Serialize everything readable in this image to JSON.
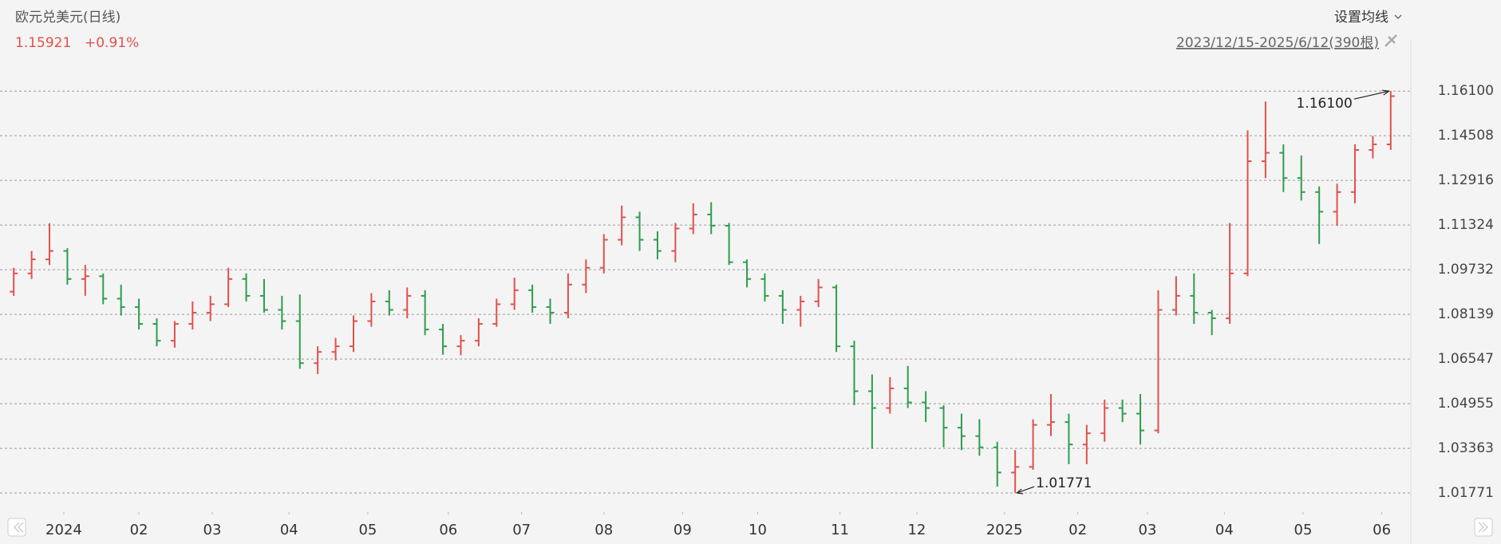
{
  "chart_data": {
    "type": "ohlc",
    "title": "欧元兑美元(日线)",
    "price": "1.15921",
    "change": "+0.91%",
    "ma_button": "设置均线",
    "range_text": "2023/12/15-2025/6/12(390根)",
    "max_label": "1.16100",
    "min_label": "1.01771",
    "up_color": "#e2504c",
    "down_color": "#2f9d4e",
    "grid": true,
    "xlim": [
      -0.5,
      77.5
    ],
    "xticks": [
      {
        "value": 2.8,
        "label": "2024"
      },
      {
        "value": 7.0,
        "label": "02"
      },
      {
        "value": 11.1,
        "label": "03"
      },
      {
        "value": 15.4,
        "label": "04"
      },
      {
        "value": 19.8,
        "label": "05"
      },
      {
        "value": 24.3,
        "label": "06"
      },
      {
        "value": 28.4,
        "label": "07"
      },
      {
        "value": 33.0,
        "label": "08"
      },
      {
        "value": 37.4,
        "label": "09"
      },
      {
        "value": 41.6,
        "label": "10"
      },
      {
        "value": 46.2,
        "label": "11"
      },
      {
        "value": 50.5,
        "label": "12"
      },
      {
        "value": 55.4,
        "label": "2025"
      },
      {
        "value": 59.5,
        "label": "02"
      },
      {
        "value": 63.4,
        "label": "03"
      },
      {
        "value": 67.7,
        "label": "04"
      },
      {
        "value": 72.1,
        "label": "05"
      },
      {
        "value": 76.5,
        "label": "06"
      }
    ],
    "ylim": [
      1.0109,
      1.173
    ],
    "yticks": [
      {
        "value": 1.161,
        "label": "1.16100"
      },
      1.14508,
      1.12916,
      1.11324,
      1.09732,
      1.08139,
      1.06547,
      1.04955,
      1.03363,
      1.01771
    ],
    "open": [
      1.0895,
      1.096,
      1.101,
      1.104,
      1.094,
      1.095,
      1.087,
      1.084,
      1.078,
      1.072,
      1.078,
      1.082,
      1.085,
      1.094,
      1.088,
      1.083,
      1.079,
      1.064,
      1.068,
      1.07,
      1.079,
      1.086,
      1.083,
      1.088,
      1.076,
      1.07,
      1.072,
      1.078,
      1.085,
      1.09,
      1.084,
      1.082,
      1.092,
      1.098,
      1.108,
      1.116,
      1.108,
      1.104,
      1.112,
      1.117,
      1.113,
      1.1,
      1.094,
      1.088,
      1.083,
      1.086,
      1.091,
      1.07,
      1.054,
      1.048,
      1.055,
      1.05,
      1.048,
      1.041,
      1.038,
      1.034,
      1.025,
      1.027,
      1.042,
      1.043,
      1.035,
      1.039,
      1.048,
      1.046,
      1.04,
      1.083,
      1.088,
      1.082,
      1.08,
      1.096,
      1.136,
      1.139,
      1.13,
      1.125,
      1.118,
      1.125,
      1.14,
      1.142
    ],
    "high": [
      1.098,
      1.104,
      1.1139,
      1.105,
      1.099,
      1.096,
      1.092,
      1.087,
      1.08,
      1.079,
      1.086,
      1.088,
      1.098,
      1.096,
      1.094,
      1.088,
      1.0885,
      1.07,
      1.073,
      1.081,
      1.089,
      1.09,
      1.091,
      1.09,
      1.078,
      1.074,
      1.08,
      1.087,
      1.0945,
      1.092,
      1.087,
      1.096,
      1.101,
      1.11,
      1.1202,
      1.118,
      1.111,
      1.114,
      1.121,
      1.1214,
      1.114,
      1.101,
      1.096,
      1.09,
      1.088,
      1.094,
      1.092,
      1.072,
      1.06,
      1.059,
      1.063,
      1.054,
      1.049,
      1.046,
      1.044,
      1.036,
      1.033,
      1.044,
      1.053,
      1.046,
      1.042,
      1.051,
      1.051,
      1.053,
      1.09,
      1.095,
      1.096,
      1.083,
      1.114,
      1.147,
      1.1573,
      1.142,
      1.138,
      1.127,
      1.128,
      1.142,
      1.145,
      1.161
    ],
    "low": [
      1.088,
      1.094,
      1.099,
      1.092,
      1.088,
      1.085,
      1.081,
      1.076,
      1.07,
      1.0695,
      1.076,
      1.079,
      1.084,
      1.086,
      1.082,
      1.076,
      1.062,
      1.0601,
      1.065,
      1.068,
      1.077,
      1.081,
      1.08,
      1.074,
      1.067,
      1.0668,
      1.07,
      1.077,
      1.083,
      1.082,
      1.078,
      1.08,
      1.089,
      1.096,
      1.106,
      1.104,
      1.101,
      1.1,
      1.11,
      1.11,
      1.099,
      1.091,
      1.086,
      1.078,
      1.077,
      1.084,
      1.068,
      1.049,
      1.0335,
      1.046,
      1.048,
      1.043,
      1.034,
      1.033,
      1.031,
      1.02,
      1.0177,
      1.026,
      1.038,
      1.028,
      1.028,
      1.036,
      1.043,
      1.035,
      1.039,
      1.081,
      1.078,
      1.074,
      1.078,
      1.095,
      1.13,
      1.125,
      1.122,
      1.1065,
      1.113,
      1.121,
      1.137,
      1.14
    ],
    "close": [
      1.096,
      1.101,
      1.104,
      1.094,
      1.095,
      1.087,
      1.084,
      1.078,
      1.072,
      1.078,
      1.082,
      1.085,
      1.094,
      1.088,
      1.083,
      1.079,
      1.064,
      1.068,
      1.07,
      1.079,
      1.086,
      1.083,
      1.088,
      1.076,
      1.07,
      1.072,
      1.078,
      1.085,
      1.09,
      1.084,
      1.082,
      1.092,
      1.098,
      1.108,
      1.116,
      1.108,
      1.104,
      1.112,
      1.117,
      1.113,
      1.1,
      1.094,
      1.088,
      1.083,
      1.086,
      1.091,
      1.07,
      1.054,
      1.048,
      1.055,
      1.05,
      1.048,
      1.041,
      1.038,
      1.034,
      1.025,
      1.027,
      1.042,
      1.043,
      1.035,
      1.039,
      1.048,
      1.046,
      1.04,
      1.083,
      1.088,
      1.082,
      1.08,
      1.096,
      1.136,
      1.139,
      1.13,
      1.125,
      1.118,
      1.125,
      1.14,
      1.142,
      1.1592
    ]
  }
}
